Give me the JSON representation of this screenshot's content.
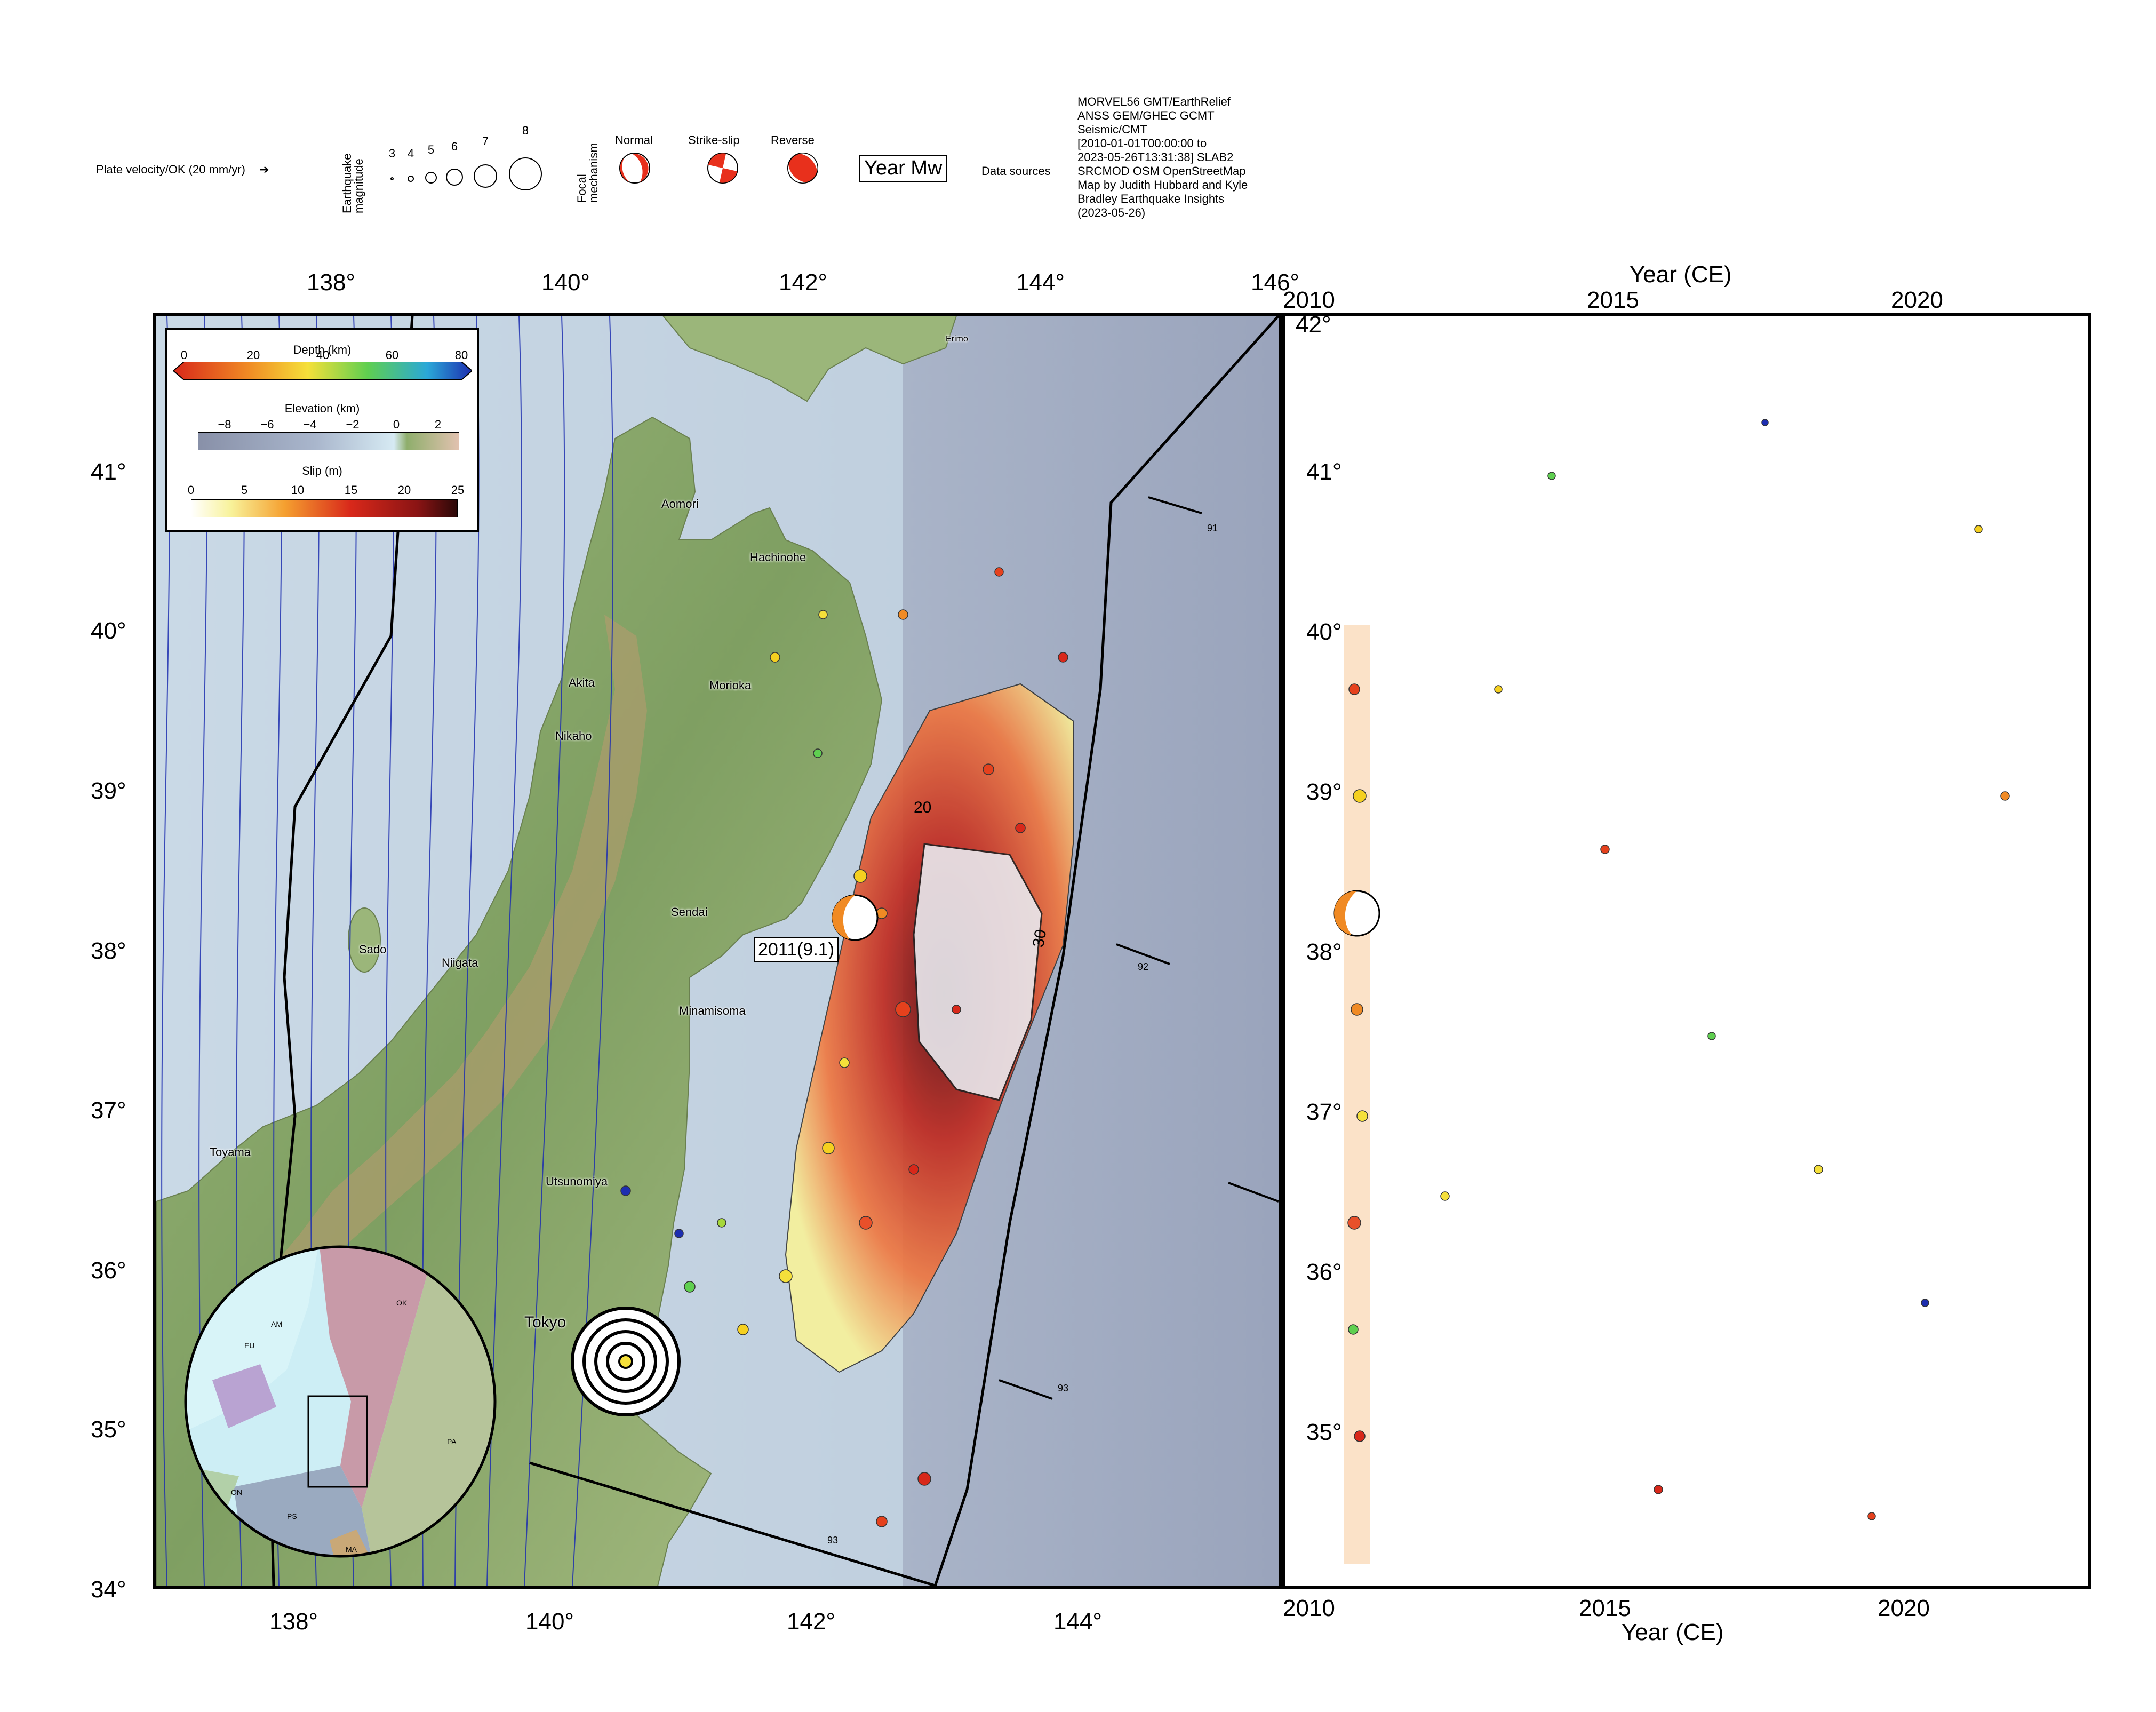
{
  "legend": {
    "plate_velocity": "Plate velocity/OK (20 mm/yr)",
    "magnitude_title": "Earthquake magnitude",
    "magnitudes": [
      "3",
      "4",
      "5",
      "6",
      "7",
      "8"
    ],
    "focal_title": "Focal mechanism",
    "focal_types": [
      "Normal",
      "Strike-slip",
      "Reverse"
    ],
    "year_mw": "Year Mw",
    "data_sources_label": "Data sources",
    "data_sources_lines": [
      "MORVEL56 GMT/EarthRelief",
      "ANSS GEM/GHEC GCMT",
      "Seismic/CMT",
      "[2010-01-01T00:00:00 to",
      "2023-05-26T13:31:38] SLAB2",
      "SRCMOD OSM OpenStreetMap",
      "Map by Judith Hubbard and Kyle",
      "Bradley Earthquake Insights",
      "(2023-05-26)"
    ]
  },
  "colorbars": {
    "depth": {
      "title": "Depth (km)",
      "ticks": [
        "0",
        "20",
        "40",
        "60",
        "80"
      ]
    },
    "elevation": {
      "title": "Elevation (km)",
      "ticks": [
        "−8",
        "−6",
        "−4",
        "−2",
        "0",
        "2"
      ]
    },
    "slip": {
      "title": "Slip (m)",
      "ticks": [
        "0",
        "5",
        "10",
        "15",
        "20",
        "25"
      ]
    }
  },
  "map": {
    "lon_ticks": [
      "138°",
      "140°",
      "142°",
      "144°",
      "146°"
    ],
    "lat_ticks": [
      "41°",
      "40°",
      "39°",
      "38°",
      "37°",
      "36°",
      "35°",
      "34°"
    ],
    "cities": [
      "Aomori",
      "Hachinohe",
      "Akita",
      "Morioka",
      "Nikaho",
      "Sendai",
      "Sado",
      "Niigata",
      "Minamisoma",
      "Toyama",
      "Utsunomiya",
      "Tokyo",
      "Erimo"
    ],
    "mainshock_label": "2011(9.1)",
    "slip_contours": [
      "20",
      "30"
    ],
    "velocity_labels": [
      "91",
      "92",
      "93",
      "93"
    ],
    "inset_plates": [
      "AM",
      "OK",
      "EU",
      "PA",
      "PS",
      "ON",
      "MA"
    ]
  },
  "time_panel": {
    "title": "Year (CE)",
    "xlabel": "Year (CE)",
    "year_ticks": [
      "2010",
      "2015",
      "2020"
    ],
    "lat_ticks": [
      "42°",
      "41°",
      "40°",
      "39°",
      "38°",
      "37°",
      "36°",
      "35°"
    ]
  },
  "colors": {
    "ocean": "#b9c3d4",
    "deep_ocean": "#8d98b0",
    "land": "#8fae6c",
    "mountain": "#b08f6a",
    "slab_contour": "#1d2eb0"
  }
}
